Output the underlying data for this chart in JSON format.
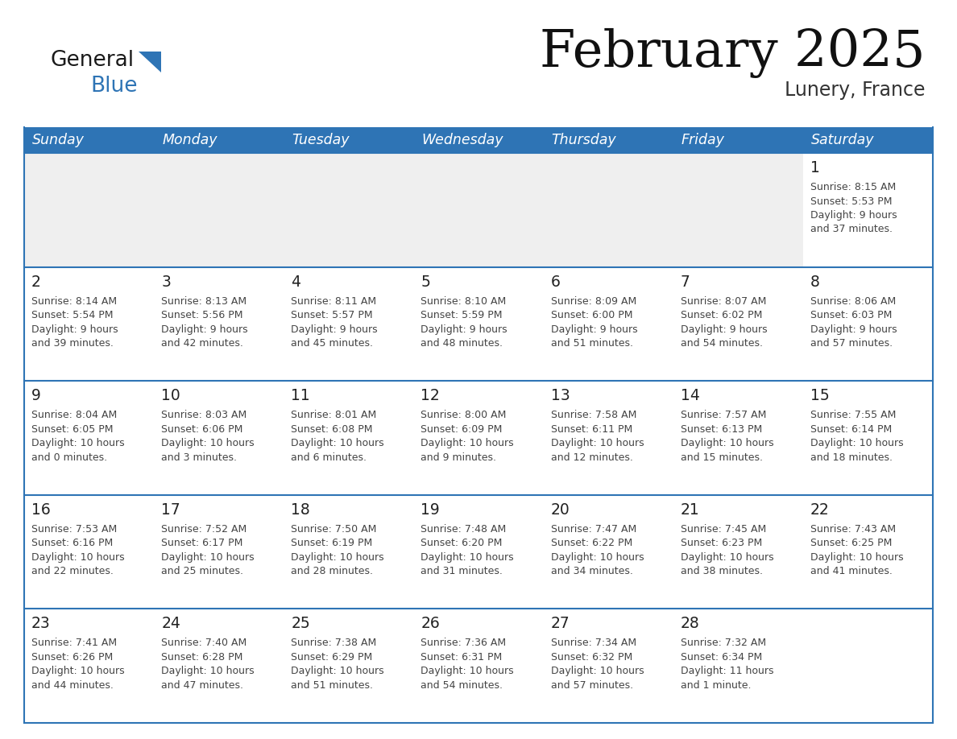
{
  "title": "February 2025",
  "subtitle": "Lunery, France",
  "days_of_week": [
    "Sunday",
    "Monday",
    "Tuesday",
    "Wednesday",
    "Thursday",
    "Friday",
    "Saturday"
  ],
  "header_bg": "#2E74B5",
  "header_text": "#FFFFFF",
  "row_bg_light": "#FFFFFF",
  "row_bg_dark": "#EFEFEF",
  "cell_border": "#2E74B5",
  "day_number_color": "#222222",
  "info_text_color": "#444444",
  "title_color": "#111111",
  "subtitle_color": "#333333",
  "logo_general_color": "#1a1a1a",
  "logo_blue_color": "#2E74B5",
  "calendar_data": [
    [
      {
        "day": null,
        "sunrise": null,
        "sunset": null,
        "daylight": null
      },
      {
        "day": null,
        "sunrise": null,
        "sunset": null,
        "daylight": null
      },
      {
        "day": null,
        "sunrise": null,
        "sunset": null,
        "daylight": null
      },
      {
        "day": null,
        "sunrise": null,
        "sunset": null,
        "daylight": null
      },
      {
        "day": null,
        "sunrise": null,
        "sunset": null,
        "daylight": null
      },
      {
        "day": null,
        "sunrise": null,
        "sunset": null,
        "daylight": null
      },
      {
        "day": 1,
        "sunrise": "8:15 AM",
        "sunset": "5:53 PM",
        "daylight": "9 hours\nand 37 minutes."
      }
    ],
    [
      {
        "day": 2,
        "sunrise": "8:14 AM",
        "sunset": "5:54 PM",
        "daylight": "9 hours\nand 39 minutes."
      },
      {
        "day": 3,
        "sunrise": "8:13 AM",
        "sunset": "5:56 PM",
        "daylight": "9 hours\nand 42 minutes."
      },
      {
        "day": 4,
        "sunrise": "8:11 AM",
        "sunset": "5:57 PM",
        "daylight": "9 hours\nand 45 minutes."
      },
      {
        "day": 5,
        "sunrise": "8:10 AM",
        "sunset": "5:59 PM",
        "daylight": "9 hours\nand 48 minutes."
      },
      {
        "day": 6,
        "sunrise": "8:09 AM",
        "sunset": "6:00 PM",
        "daylight": "9 hours\nand 51 minutes."
      },
      {
        "day": 7,
        "sunrise": "8:07 AM",
        "sunset": "6:02 PM",
        "daylight": "9 hours\nand 54 minutes."
      },
      {
        "day": 8,
        "sunrise": "8:06 AM",
        "sunset": "6:03 PM",
        "daylight": "9 hours\nand 57 minutes."
      }
    ],
    [
      {
        "day": 9,
        "sunrise": "8:04 AM",
        "sunset": "6:05 PM",
        "daylight": "10 hours\nand 0 minutes."
      },
      {
        "day": 10,
        "sunrise": "8:03 AM",
        "sunset": "6:06 PM",
        "daylight": "10 hours\nand 3 minutes."
      },
      {
        "day": 11,
        "sunrise": "8:01 AM",
        "sunset": "6:08 PM",
        "daylight": "10 hours\nand 6 minutes."
      },
      {
        "day": 12,
        "sunrise": "8:00 AM",
        "sunset": "6:09 PM",
        "daylight": "10 hours\nand 9 minutes."
      },
      {
        "day": 13,
        "sunrise": "7:58 AM",
        "sunset": "6:11 PM",
        "daylight": "10 hours\nand 12 minutes."
      },
      {
        "day": 14,
        "sunrise": "7:57 AM",
        "sunset": "6:13 PM",
        "daylight": "10 hours\nand 15 minutes."
      },
      {
        "day": 15,
        "sunrise": "7:55 AM",
        "sunset": "6:14 PM",
        "daylight": "10 hours\nand 18 minutes."
      }
    ],
    [
      {
        "day": 16,
        "sunrise": "7:53 AM",
        "sunset": "6:16 PM",
        "daylight": "10 hours\nand 22 minutes."
      },
      {
        "day": 17,
        "sunrise": "7:52 AM",
        "sunset": "6:17 PM",
        "daylight": "10 hours\nand 25 minutes."
      },
      {
        "day": 18,
        "sunrise": "7:50 AM",
        "sunset": "6:19 PM",
        "daylight": "10 hours\nand 28 minutes."
      },
      {
        "day": 19,
        "sunrise": "7:48 AM",
        "sunset": "6:20 PM",
        "daylight": "10 hours\nand 31 minutes."
      },
      {
        "day": 20,
        "sunrise": "7:47 AM",
        "sunset": "6:22 PM",
        "daylight": "10 hours\nand 34 minutes."
      },
      {
        "day": 21,
        "sunrise": "7:45 AM",
        "sunset": "6:23 PM",
        "daylight": "10 hours\nand 38 minutes."
      },
      {
        "day": 22,
        "sunrise": "7:43 AM",
        "sunset": "6:25 PM",
        "daylight": "10 hours\nand 41 minutes."
      }
    ],
    [
      {
        "day": 23,
        "sunrise": "7:41 AM",
        "sunset": "6:26 PM",
        "daylight": "10 hours\nand 44 minutes."
      },
      {
        "day": 24,
        "sunrise": "7:40 AM",
        "sunset": "6:28 PM",
        "daylight": "10 hours\nand 47 minutes."
      },
      {
        "day": 25,
        "sunrise": "7:38 AM",
        "sunset": "6:29 PM",
        "daylight": "10 hours\nand 51 minutes."
      },
      {
        "day": 26,
        "sunrise": "7:36 AM",
        "sunset": "6:31 PM",
        "daylight": "10 hours\nand 54 minutes."
      },
      {
        "day": 27,
        "sunrise": "7:34 AM",
        "sunset": "6:32 PM",
        "daylight": "10 hours\nand 57 minutes."
      },
      {
        "day": 28,
        "sunrise": "7:32 AM",
        "sunset": "6:34 PM",
        "daylight": "11 hours\nand 1 minute."
      },
      {
        "day": null,
        "sunrise": null,
        "sunset": null,
        "daylight": null
      }
    ]
  ]
}
